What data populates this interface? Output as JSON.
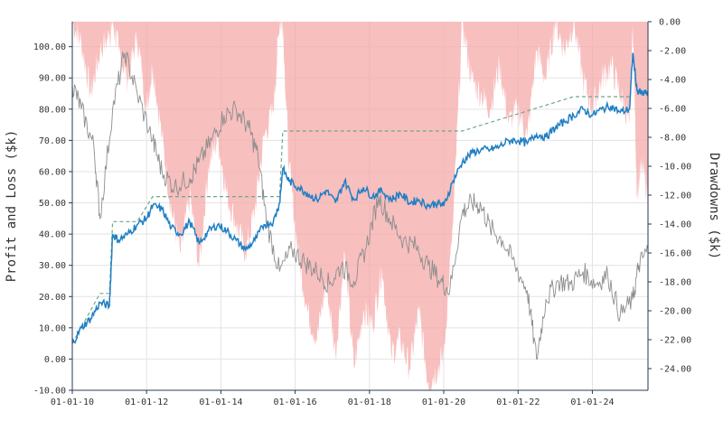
{
  "chart_data": {
    "type": "line",
    "title": "",
    "x_tick_labels": [
      "01-01-10",
      "01-01-12",
      "01-01-14",
      "01-01-16",
      "01-01-18",
      "01-01-20",
      "01-01-22",
      "01-01-24"
    ],
    "x_domain": [
      "2010-01-01",
      "2025-07-01"
    ],
    "y_left": {
      "label": "Profit and Loss ($k)",
      "ylim": [
        -10,
        108
      ],
      "ticks": [
        -10,
        0,
        10,
        20,
        30,
        40,
        50,
        60,
        70,
        80,
        90,
        100
      ],
      "tick_labels": [
        "-10.00",
        "0.00",
        "10.00",
        "20.00",
        "30.00",
        "40.00",
        "50.00",
        "60.00",
        "70.00",
        "80.00",
        "90.00",
        "100.00"
      ]
    },
    "y_right": {
      "label": "Drawdowns ($k)",
      "ylim": [
        -25.5,
        0
      ],
      "ticks": [
        0,
        -2,
        -4,
        -6,
        -8,
        -10,
        -12,
        -14,
        -16,
        -18,
        -20,
        -22,
        -24
      ],
      "tick_labels": [
        "0.00",
        "-2.00",
        "-4.00",
        "-6.00",
        "-8.00",
        "-10.00",
        "-12.00",
        "-14.00",
        "-16.00",
        "-18.00",
        "-20.00",
        "-22.00",
        "-24.00"
      ]
    },
    "series": [
      {
        "role": "pnl",
        "axis": "left",
        "color": "#1f7fc4",
        "x": [
          "2010-01-01",
          "2010-04-01",
          "2010-07-01",
          "2010-10-01",
          "2011-01-01",
          "2011-02-01",
          "2011-04-01",
          "2011-07-01",
          "2011-10-01",
          "2012-01-01",
          "2012-03-01",
          "2012-06-01",
          "2012-09-01",
          "2012-12-01",
          "2013-03-01",
          "2013-06-01",
          "2013-09-01",
          "2013-12-01",
          "2014-03-01",
          "2014-06-01",
          "2014-09-01",
          "2014-12-01",
          "2015-03-01",
          "2015-06-01",
          "2015-08-01",
          "2015-09-01",
          "2015-11-01",
          "2016-02-01",
          "2016-05-01",
          "2016-08-01",
          "2016-11-01",
          "2017-02-01",
          "2017-05-01",
          "2017-08-01",
          "2017-11-01",
          "2018-02-01",
          "2018-05-01",
          "2018-08-01",
          "2018-11-01",
          "2019-02-01",
          "2019-05-01",
          "2019-08-01",
          "2019-11-01",
          "2020-01-01",
          "2020-04-01",
          "2020-07-01",
          "2020-10-01",
          "2021-01-01",
          "2021-04-01",
          "2021-07-01",
          "2021-10-01",
          "2022-01-01",
          "2022-04-01",
          "2022-07-01",
          "2022-10-01",
          "2023-01-01",
          "2023-04-01",
          "2023-07-01",
          "2023-10-01",
          "2024-01-01",
          "2024-04-01",
          "2024-07-01",
          "2024-10-01",
          "2025-01-01",
          "2025-02-01",
          "2025-03-15",
          "2025-05-01",
          "2025-07-01"
        ],
        "values": [
          5,
          10,
          13,
          18,
          17,
          40,
          38,
          40,
          43,
          45,
          49,
          48,
          42,
          40,
          44,
          37,
          41,
          43,
          41,
          38,
          35,
          38,
          43,
          44,
          50,
          61,
          57,
          55,
          53,
          51,
          54,
          50,
          57,
          51,
          55,
          52,
          54,
          51,
          53,
          50,
          51,
          49,
          50,
          49,
          57,
          63,
          66,
          67,
          67,
          68,
          70,
          70,
          69,
          72,
          71,
          74,
          76,
          78,
          80,
          78,
          80,
          81,
          79,
          80,
          98,
          86,
          85,
          85
        ]
      },
      {
        "role": "high-water-mark",
        "axis": "left",
        "color": "#6aa88e",
        "x": [
          "2010-01-01",
          "2010-10-01",
          "2011-01-01",
          "2011-02-01",
          "2011-10-01",
          "2012-03-01",
          "2015-08-01",
          "2015-09-01",
          "2020-07-01",
          "2023-07-01",
          "2025-01-01"
        ],
        "values": [
          5,
          21,
          21,
          44,
          44,
          52,
          52,
          73,
          73,
          84,
          84
        ]
      },
      {
        "role": "reference",
        "axis": "left",
        "color": "#8e8e8e",
        "x": [
          "2010-01-01",
          "2010-04-01",
          "2010-08-01",
          "2010-10-01",
          "2011-02-01",
          "2011-06-01",
          "2011-10-01",
          "2012-03-01",
          "2012-06-01",
          "2012-10-01",
          "2013-03-01",
          "2013-06-01",
          "2013-10-01",
          "2014-02-01",
          "2014-06-01",
          "2014-10-01",
          "2015-01-01",
          "2015-04-01",
          "2015-08-01",
          "2015-12-01",
          "2016-04-01",
          "2016-08-01",
          "2016-12-01",
          "2017-04-01",
          "2017-08-01",
          "2017-12-01",
          "2018-04-01",
          "2018-08-01",
          "2018-12-01",
          "2019-04-01",
          "2019-08-01",
          "2019-12-01",
          "2020-03-01",
          "2020-07-01",
          "2020-10-01",
          "2021-01-01",
          "2021-04-01",
          "2021-08-01",
          "2021-12-01",
          "2022-04-01",
          "2022-07-01",
          "2022-10-01",
          "2023-02-01",
          "2023-06-01",
          "2023-10-01",
          "2024-02-01",
          "2024-06-01",
          "2024-10-01",
          "2025-02-01",
          "2025-04-01",
          "2025-07-01"
        ],
        "values": [
          88,
          80,
          68,
          45,
          80,
          98,
          85,
          70,
          60,
          55,
          58,
          63,
          70,
          78,
          80,
          74,
          65,
          43,
          28,
          35,
          31,
          28,
          24,
          30,
          25,
          36,
          52,
          44,
          38,
          36,
          30,
          25,
          22,
          47,
          50,
          49,
          42,
          38,
          30,
          22,
          0,
          19,
          25,
          24,
          28,
          24,
          27,
          14,
          19,
          30,
          35
        ]
      },
      {
        "role": "drawdown",
        "axis": "right",
        "color": "#f5aaaa",
        "x": [
          "2010-01-01",
          "2010-04-01",
          "2010-07-01",
          "2010-10-01",
          "2011-01-01",
          "2011-02-01",
          "2011-04-01",
          "2011-07-01",
          "2011-10-01",
          "2012-01-01",
          "2012-03-01",
          "2012-06-01",
          "2012-09-01",
          "2012-12-01",
          "2013-03-01",
          "2013-06-01",
          "2013-09-01",
          "2013-12-01",
          "2014-03-01",
          "2014-06-01",
          "2014-09-01",
          "2014-12-01",
          "2015-03-01",
          "2015-06-01",
          "2015-08-01",
          "2015-09-01",
          "2015-11-01",
          "2016-02-01",
          "2016-05-01",
          "2016-08-01",
          "2016-11-01",
          "2017-02-01",
          "2017-05-01",
          "2017-08-01",
          "2017-11-01",
          "2018-02-01",
          "2018-05-01",
          "2018-08-01",
          "2018-11-01",
          "2019-02-01",
          "2019-05-01",
          "2019-08-01",
          "2019-11-01",
          "2020-01-01",
          "2020-04-01",
          "2020-07-01",
          "2020-10-01",
          "2021-01-01",
          "2021-04-01",
          "2021-07-01",
          "2021-10-01",
          "2022-01-01",
          "2022-04-01",
          "2022-07-01",
          "2022-10-01",
          "2023-01-01",
          "2023-04-01",
          "2023-07-01",
          "2023-10-01",
          "2024-01-01",
          "2024-04-01",
          "2024-07-01",
          "2024-10-01",
          "2025-01-01",
          "2025-02-01",
          "2025-03-15",
          "2025-05-01",
          "2025-07-01"
        ],
        "values": [
          0,
          -1.5,
          -5,
          -2,
          -1,
          0,
          -2,
          -4,
          -1,
          -6,
          -3,
          -8,
          -13,
          -16,
          -12,
          -17,
          -10,
          -8,
          -12,
          -14,
          -16,
          -13,
          -8,
          -6,
          0,
          0,
          -10,
          -16,
          -20,
          -22,
          -18,
          -23,
          -16,
          -24,
          -20,
          -21,
          -17,
          -23,
          -22,
          -24,
          -20,
          -25,
          -24,
          -23,
          -14,
          0,
          -4,
          -5,
          -6,
          -3,
          -7,
          -6,
          -8,
          -2,
          -4,
          0,
          -2,
          0,
          -4,
          -6,
          -4,
          -3,
          -5,
          -7,
          0,
          -12,
          -10,
          -12
        ]
      }
    ]
  }
}
